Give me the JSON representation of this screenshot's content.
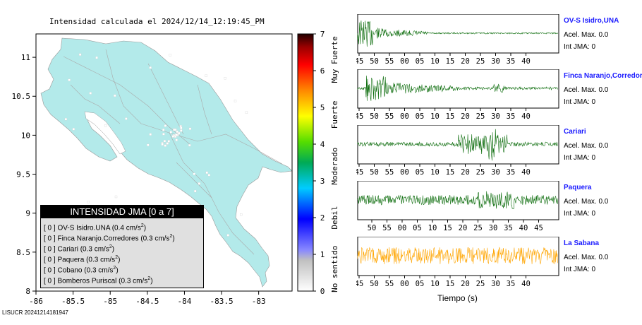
{
  "title": "Intensidad calculada el 2024/12/14_12:19:45_PM",
  "footer": "LISUCR 20241214181947",
  "map": {
    "x_ticks": [
      "-86",
      "-85.5",
      "-85",
      "-84.5",
      "-84",
      "-83.5",
      "-83"
    ],
    "y_ticks": [
      "11",
      "10.5",
      "10",
      "9.5",
      "9",
      "8.5",
      "8"
    ],
    "land_color": "#b3eaea",
    "water_color": "#ffffff"
  },
  "colorbar": {
    "ticks": [
      "7",
      "6",
      "5",
      "4",
      "3",
      "2",
      "1",
      "0"
    ],
    "labels": [
      "Muy Fuerte",
      "Fuerte",
      "Moderado",
      "Debil",
      "No sentido"
    ]
  },
  "legend": {
    "title": "INTENSIDAD JMA [0 a 7]",
    "rows": [
      {
        "prefix": "[ 0 ]",
        "name": "OV-S Isidro.UNA",
        "value": "(0.4 cm/s",
        "sup": "2",
        "close": ")"
      },
      {
        "prefix": "[ 0 ]",
        "name": "Finca Naranjo.Corredores",
        "value": "(0.3 cm/s",
        "sup": "2",
        "close": ")"
      },
      {
        "prefix": "[ 0 ]",
        "name": "Cariari",
        "value": "(0.3 cm/s",
        "sup": "2",
        "close": ")"
      },
      {
        "prefix": "[ 0 ]",
        "name": "Paquera",
        "value": "(0.3 cm/s",
        "sup": "2",
        "close": ")"
      },
      {
        "prefix": "[ 0 ]",
        "name": "Cobano",
        "value": "(0.3 cm/s",
        "sup": "2",
        "close": ")"
      },
      {
        "prefix": "[ 0 ]",
        "name": "Bomberos Puriscal",
        "value": "(0.3 cm/s",
        "sup": "2",
        "close": ")"
      }
    ]
  },
  "waveforms": {
    "xlabel": "Tiempo (s)",
    "green": "#0a6b0a",
    "orange": "#ffa500",
    "panels": [
      {
        "name": "OV-S Isidro,UNA",
        "acel": "Acel. Max. 0.0",
        "int": "Int JMA: 0",
        "ticks": [
          "45",
          "50",
          "55",
          "00",
          "05",
          "10",
          "15",
          "20",
          "25",
          "30",
          "35",
          "40"
        ]
      },
      {
        "name": "Finca Naranjo,Corredores",
        "acel": "Acel. Max. 0.0",
        "int": "Int JMA: 0",
        "ticks": [
          "45",
          "50",
          "55",
          "00",
          "05",
          "10",
          "15",
          "20",
          "25",
          "30",
          "35",
          "40"
        ]
      },
      {
        "name": "Cariari",
        "acel": "Acel. Max. 0.0",
        "int": "Int JMA: 0",
        "ticks": [
          "45",
          "50",
          "55",
          "00",
          "05",
          "10",
          "15",
          "20",
          "25",
          "30",
          "35",
          "40"
        ]
      },
      {
        "name": "Paquera",
        "acel": "Acel. Max. 0.0",
        "int": "Int JMA: 0",
        "ticks": [
          "50",
          "55",
          "00",
          "05",
          "10",
          "15",
          "20",
          "25",
          "30",
          "35",
          "40",
          "45"
        ]
      },
      {
        "name": "La Sabana",
        "acel": "Acel. Max. 0.0",
        "int": "Int JMA: 0",
        "ticks": [
          "45",
          "50",
          "55",
          "00",
          "05",
          "10",
          "15",
          "20",
          "25",
          "30",
          "35",
          "40"
        ]
      }
    ]
  },
  "chart_data": [
    {
      "type": "map",
      "title": "Intensidad calculada el 2024/12/14_12:19:45_PM",
      "xlim": [
        -86,
        -82.55
      ],
      "ylim": [
        8,
        11.3
      ],
      "x_ticks": [
        -86,
        -85.5,
        -85,
        -84.5,
        -84,
        -83.5,
        -83
      ],
      "y_ticks": [
        8,
        8.5,
        9,
        9.5,
        10,
        10.5,
        11
      ],
      "colorbar": {
        "min": 0,
        "max": 7,
        "labels": [
          "No sentido",
          "Debil",
          "Moderado",
          "Fuerte",
          "Muy Fuerte"
        ]
      },
      "stations": [
        {
          "name": "OV-S Isidro.UNA",
          "intensity": 0,
          "acc_cm_s2": 0.4
        },
        {
          "name": "Finca Naranjo.Corredores",
          "intensity": 0,
          "acc_cm_s2": 0.3
        },
        {
          "name": "Cariari",
          "intensity": 0,
          "acc_cm_s2": 0.3
        },
        {
          "name": "Paquera",
          "intensity": 0,
          "acc_cm_s2": 0.3
        },
        {
          "name": "Cobano",
          "intensity": 0,
          "acc_cm_s2": 0.3
        },
        {
          "name": "Bomberos Puriscal",
          "intensity": 0,
          "acc_cm_s2": 0.3
        }
      ]
    },
    {
      "type": "line",
      "xlabel": "Tiempo (s)",
      "series": [
        {
          "name": "OV-S Isidro,UNA",
          "acel_max": 0.0,
          "int_jma": 0
        },
        {
          "name": "Finca Naranjo,Corredores",
          "acel_max": 0.0,
          "int_jma": 0
        },
        {
          "name": "Cariari",
          "acel_max": 0.0,
          "int_jma": 0
        },
        {
          "name": "Paquera",
          "acel_max": 0.0,
          "int_jma": 0
        },
        {
          "name": "La Sabana",
          "acel_max": 0.0,
          "int_jma": 0
        }
      ]
    }
  ]
}
